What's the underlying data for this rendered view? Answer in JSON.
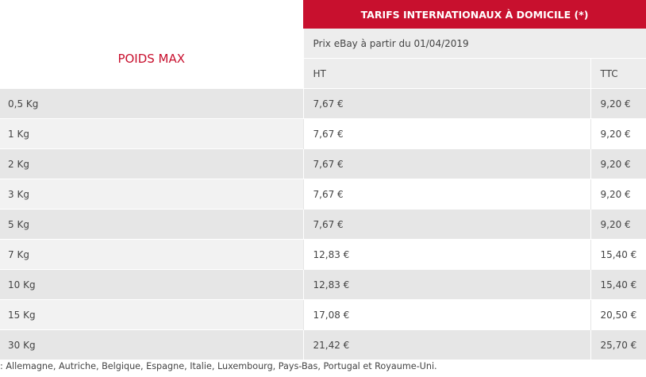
{
  "header": {
    "title": "TARIFS INTERNATIONAUX À DOMICILE (*)",
    "poids_label": "POIDS MAX",
    "prix_label": "Prix eBay à partir du 01/04/2019",
    "col_ht": "HT",
    "col_ttc": "TTC"
  },
  "rows": [
    {
      "poids": "0,5 Kg",
      "ht": "7,67 €",
      "ttc": "9,20 €"
    },
    {
      "poids": "1 Kg",
      "ht": "7,67 €",
      "ttc": "9,20 €"
    },
    {
      "poids": "2 Kg",
      "ht": "7,67 €",
      "ttc": "9,20 €"
    },
    {
      "poids": "3 Kg",
      "ht": "7,67 €",
      "ttc": "9,20 €"
    },
    {
      "poids": "5 Kg",
      "ht": "7,67 €",
      "ttc": "9,20 €"
    },
    {
      "poids": "7 Kg",
      "ht": "12,83 €",
      "ttc": "15,40 €"
    },
    {
      "poids": "10 Kg",
      "ht": "12,83 €",
      "ttc": "15,40 €"
    },
    {
      "poids": "15 Kg",
      "ht": "17,08 €",
      "ttc": "20,50 €"
    },
    {
      "poids": "30 Kg",
      "ht": "21,42 €",
      "ttc": "25,70 €"
    }
  ],
  "footnote": ": Allemagne, Autriche, Belgique, Espagne, Italie, Luxembourg, Pays-Bas, Portugal et Royaume-Uni.",
  "colors": {
    "accent": "#c8102e",
    "row_dark": "#e6e6e6",
    "row_light": "#f2f2f2"
  }
}
